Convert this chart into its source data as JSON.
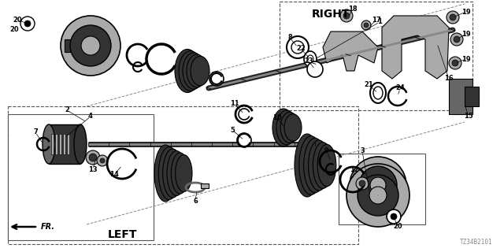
{
  "bg_color": "#ffffff",
  "diagram_id": "TZ34B2101",
  "right_label": "RIGHT",
  "left_label": "LEFT",
  "fr_label": "FR.",
  "line_color": "#000000",
  "text_color": "#000000",
  "gray_dark": "#333333",
  "gray_mid": "#666666",
  "gray_light": "#aaaaaa",
  "gray_fill": "#999999",
  "white": "#ffffff"
}
